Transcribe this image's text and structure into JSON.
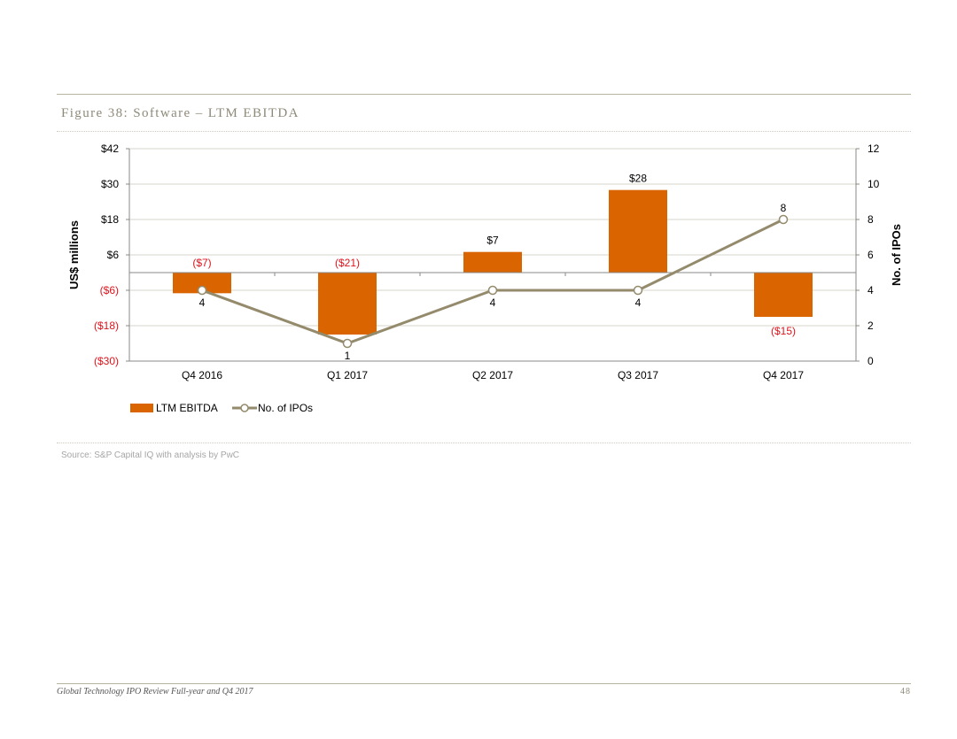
{
  "figure": {
    "title": "Figure 38: Software – LTM EBITDA",
    "source": "Source: S&P Capital IQ with analysis by PwC"
  },
  "footer": {
    "title": "Global Technology IPO Review Full-year and Q4 2017",
    "page": "48"
  },
  "colors": {
    "bar": "#d96400",
    "line": "#948a6c",
    "negative_text": "#e0131b",
    "axis_text": "#000000",
    "grid": "#d9d6c8"
  },
  "chart_data": {
    "type": "bar+line",
    "categories": [
      "Q4 2016",
      "Q1 2017",
      "Q2 2017",
      "Q3 2017",
      "Q4 2017"
    ],
    "series": [
      {
        "name": "LTM EBITDA",
        "type": "bar",
        "axis": "left",
        "values": [
          -7,
          -21,
          7,
          28,
          -15
        ],
        "labels": [
          "($7)",
          "($21)",
          "$7",
          "$28",
          "($15)"
        ]
      },
      {
        "name": "No. of IPOs",
        "type": "line",
        "axis": "right",
        "values": [
          4,
          1,
          4,
          4,
          8
        ],
        "labels": [
          "4",
          "1",
          "4",
          "4",
          "8"
        ]
      }
    ],
    "left_axis": {
      "label": "US$ millions",
      "min": -30,
      "max": 42,
      "ticks": [
        42,
        30,
        18,
        6,
        -6,
        -18,
        -30
      ],
      "tick_labels": [
        "$42",
        "$30",
        "$18",
        "$6",
        "($6)",
        "($18)",
        "($30)"
      ]
    },
    "right_axis": {
      "label": "No. of IPOs",
      "min": 0,
      "max": 12,
      "ticks": [
        12,
        10,
        8,
        6,
        4,
        2,
        0
      ],
      "tick_labels": [
        "12",
        "10",
        "8",
        "6",
        "4",
        "2",
        "0"
      ]
    },
    "grid": true,
    "legend_position": "bottom-left"
  }
}
